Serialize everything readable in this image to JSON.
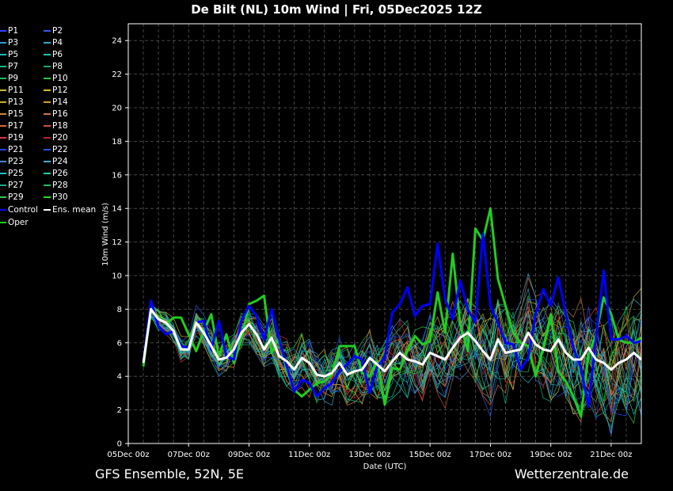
{
  "title": "De Bilt  (NL)  10m Wind | Fri, 05Dec2025 12Z",
  "footer_left": "GFS Ensemble, 52N, 5E",
  "footer_right": "Wetterzentrale.de",
  "chart_data": {
    "type": "line",
    "xlabel": "Date (UTC)",
    "ylabel": "10m Wind (m/s)",
    "ylim": [
      0,
      25
    ],
    "yticks": [
      0,
      2,
      4,
      6,
      8,
      10,
      12,
      14,
      16,
      18,
      20,
      22,
      24
    ],
    "xticks": [
      "05Dec 00z",
      "07Dec 00z",
      "09Dec 00z",
      "11Dec 00z",
      "13Dec 00z",
      "15Dec 00z",
      "17Dec 00z",
      "19Dec 00z",
      "21Dec 00z"
    ],
    "x_start": "05Dec2025 00z",
    "x_end": "21Dec2025 12z",
    "x_step_hours": 6,
    "grid": true,
    "legend_position": "left",
    "series": [
      {
        "name": "Ens. mean",
        "color": "#ffffff",
        "values": [
          4.8,
          8.0,
          7.4,
          7.2,
          6.7,
          5.6,
          5.6,
          7.2,
          6.6,
          5.8,
          5.0,
          5.1,
          5.6,
          6.6,
          7.1,
          6.5,
          5.6,
          6.3,
          5.2,
          4.9,
          4.4,
          5.1,
          4.8,
          4.1,
          4.0,
          4.2,
          4.8,
          4.1,
          4.3,
          4.4,
          5.1,
          4.7,
          4.3,
          4.9,
          5.4,
          5.0,
          4.9,
          4.7,
          5.4,
          5.2,
          5.0,
          5.7,
          6.3,
          6.6,
          6.1,
          5.5,
          5.0,
          6.2,
          5.4,
          5.5,
          5.6,
          6.6,
          5.9,
          5.6,
          5.5,
          6.2,
          5.4,
          5.0,
          5.0,
          5.7,
          5.0,
          4.8,
          4.4,
          4.8,
          5.0,
          5.4,
          5.0
        ]
      },
      {
        "name": "Control",
        "color": "#0000ff",
        "values": [
          4.8,
          8.5,
          7.0,
          6.5,
          6.7,
          5.8,
          5.7,
          7.2,
          7.3,
          5.6,
          7.3,
          5.2,
          5.0,
          7.3,
          8.2,
          7.6,
          6.2,
          8.0,
          6.2,
          4.6,
          3.1,
          3.8,
          3.6,
          2.8,
          3.3,
          3.6,
          4.3,
          4.7,
          5.2,
          5.0,
          3.0,
          4.6,
          5.1,
          7.8,
          8.3,
          9.3,
          7.6,
          8.2,
          8.3,
          11.9,
          8.6,
          7.4,
          9.7,
          8.0,
          7.2,
          12.5,
          8.2,
          7.2,
          6.0,
          5.9,
          4.4,
          5.1,
          7.7,
          9.2,
          8.2,
          9.9,
          7.7,
          5.7,
          4.5,
          2.2,
          6.3,
          10.3,
          6.2,
          6.2,
          6.4,
          6.0,
          6.1
        ]
      },
      {
        "name": "Oper",
        "color": "#22cc22",
        "values": [
          4.6,
          8.1,
          7.5,
          7.1,
          7.5,
          7.5,
          6.5,
          5.5,
          6.7,
          7.7,
          5.2,
          6.5,
          4.8,
          6.2,
          8.3,
          8.5,
          8.8,
          5.4,
          6.3,
          4.3,
          3.2,
          2.8,
          3.2,
          3.6,
          3.7,
          4.1,
          5.8,
          5.8,
          5.8,
          4.2,
          4.0,
          4.9,
          2.3,
          4.5,
          4.4,
          5.5,
          6.4,
          5.9,
          6.1,
          9.0,
          6.6,
          11.3,
          7.1,
          5.5,
          12.8,
          12.1,
          14.0,
          9.8,
          8.2,
          6.6,
          6.0,
          5.8,
          4.0,
          5.7,
          7.7,
          4.3,
          3.7,
          2.8,
          1.6,
          5.3,
          6.5,
          8.7,
          7.7,
          6.2,
          6.0,
          6.0,
          6.3
        ]
      }
    ],
    "members": [
      {
        "name": "P1",
        "color": "#3344ff"
      },
      {
        "name": "P2",
        "color": "#3355ee"
      },
      {
        "name": "P3",
        "color": "#3399dd"
      },
      {
        "name": "P4",
        "color": "#33aacc"
      },
      {
        "name": "P5",
        "color": "#11bbbb"
      },
      {
        "name": "P6",
        "color": "#11ccaa"
      },
      {
        "name": "P7",
        "color": "#11bb88"
      },
      {
        "name": "P8",
        "color": "#11aa66"
      },
      {
        "name": "P9",
        "color": "#22bb55"
      },
      {
        "name": "P10",
        "color": "#22cc33"
      },
      {
        "name": "P11",
        "color": "#ccbb44"
      },
      {
        "name": "P12",
        "color": "#ddbb33"
      },
      {
        "name": "P13",
        "color": "#ccaa33"
      },
      {
        "name": "P14",
        "color": "#dd9933"
      },
      {
        "name": "P15",
        "color": "#cc8833"
      },
      {
        "name": "P16",
        "color": "#cc7744"
      },
      {
        "name": "P17",
        "color": "#dd6633"
      },
      {
        "name": "P18",
        "color": "#cc5533"
      },
      {
        "name": "P19",
        "color": "#dd3333"
      },
      {
        "name": "P20",
        "color": "#bb2222"
      },
      {
        "name": "P21",
        "color": "#2244ff"
      },
      {
        "name": "P22",
        "color": "#2255dd"
      },
      {
        "name": "P23",
        "color": "#4488cc"
      },
      {
        "name": "P24",
        "color": "#44aadd"
      },
      {
        "name": "P25",
        "color": "#22bbcc"
      },
      {
        "name": "P26",
        "color": "#22ccaa"
      },
      {
        "name": "P27",
        "color": "#22aa88"
      },
      {
        "name": "P28",
        "color": "#22bb66"
      },
      {
        "name": "P29",
        "color": "#33cc44"
      },
      {
        "name": "P30",
        "color": "#22dd22"
      }
    ]
  },
  "legend": {
    "extra_left": [
      {
        "name": "Control",
        "color": "#0000ff"
      },
      {
        "name": "Oper",
        "color": "#22cc22"
      }
    ],
    "extra_right": [
      {
        "name": "Ens. mean",
        "color": "#ffffff"
      }
    ]
  }
}
